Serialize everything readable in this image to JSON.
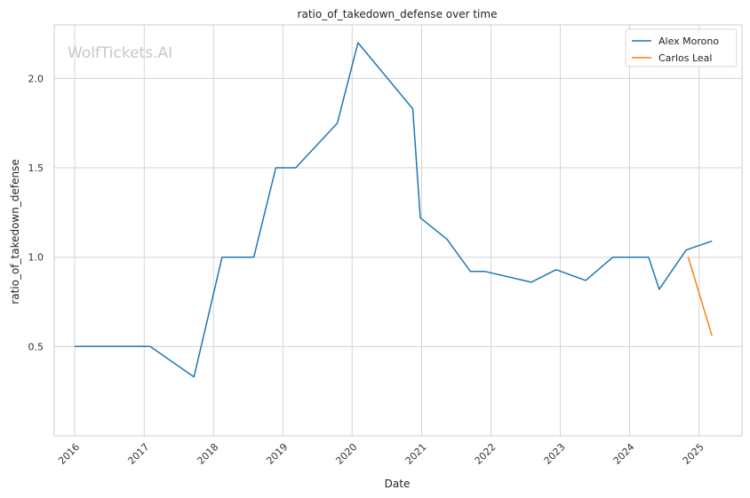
{
  "chart_data": {
    "type": "line",
    "title": "ratio_of_takedown_defense over time",
    "xlabel": "Date",
    "ylabel": "ratio_of_takedown_defense",
    "watermark": "WolfTickets.AI",
    "xlim": [
      "2015-09-15",
      "2025-08-15"
    ],
    "ylim": [
      0.0,
      2.3
    ],
    "x_ticks": [
      "2016-01-01",
      "2017-01-01",
      "2018-01-01",
      "2019-01-01",
      "2020-01-01",
      "2021-01-01",
      "2022-01-01",
      "2023-01-01",
      "2024-01-01",
      "2025-01-01"
    ],
    "x_tick_labels": [
      "2016",
      "2017",
      "2018",
      "2019",
      "2020",
      "2021",
      "2022",
      "2023",
      "2024",
      "2025"
    ],
    "y_ticks": [
      0.5,
      1.0,
      1.5,
      2.0
    ],
    "y_tick_labels": [
      "0.5",
      "1.0",
      "1.5",
      "2.0"
    ],
    "grid": true,
    "legend_position": "top-right",
    "series": [
      {
        "name": "Alex Morono",
        "color": "#1f77b4",
        "points": [
          {
            "x": "2016-01-01",
            "y": 0.5
          },
          {
            "x": "2017-02-01",
            "y": 0.5
          },
          {
            "x": "2017-09-20",
            "y": 0.33
          },
          {
            "x": "2018-02-15",
            "y": 1.0
          },
          {
            "x": "2018-08-01",
            "y": 1.0
          },
          {
            "x": "2018-11-25",
            "y": 1.5
          },
          {
            "x": "2019-03-10",
            "y": 1.5
          },
          {
            "x": "2019-10-15",
            "y": 1.75
          },
          {
            "x": "2020-02-01",
            "y": 2.2
          },
          {
            "x": "2020-11-15",
            "y": 1.83
          },
          {
            "x": "2020-12-25",
            "y": 1.22
          },
          {
            "x": "2021-05-15",
            "y": 1.1
          },
          {
            "x": "2021-09-15",
            "y": 0.92
          },
          {
            "x": "2021-12-01",
            "y": 0.92
          },
          {
            "x": "2022-08-01",
            "y": 0.86
          },
          {
            "x": "2022-12-10",
            "y": 0.93
          },
          {
            "x": "2023-05-15",
            "y": 0.87
          },
          {
            "x": "2023-10-05",
            "y": 1.0
          },
          {
            "x": "2024-04-10",
            "y": 1.0
          },
          {
            "x": "2024-06-05",
            "y": 0.82
          },
          {
            "x": "2024-10-25",
            "y": 1.04
          },
          {
            "x": "2025-03-10",
            "y": 1.09
          }
        ]
      },
      {
        "name": "Carlos Leal",
        "color": "#ff7f0e",
        "points": [
          {
            "x": "2024-11-05",
            "y": 1.0
          },
          {
            "x": "2025-03-10",
            "y": 0.56
          }
        ]
      }
    ]
  }
}
